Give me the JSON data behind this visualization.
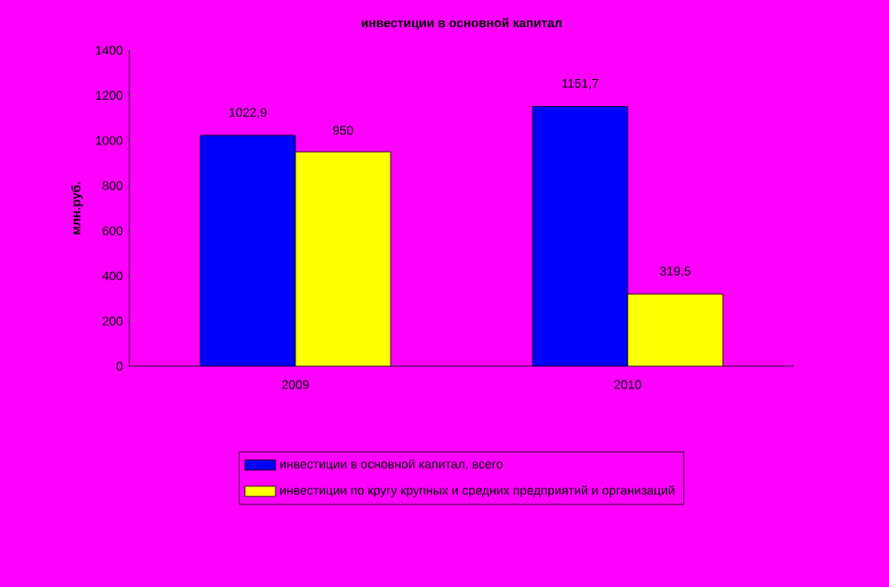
{
  "chart_data": {
    "type": "bar",
    "title": "инвестиции в основной капитал",
    "ylabel": "млн.руб.",
    "categories": [
      "2009",
      "2010"
    ],
    "series": [
      {
        "name": "инвестиции в основной капитал, всего",
        "color": "#0000ff",
        "values": [
          1022.9,
          1151.7
        ],
        "value_labels": [
          "1022,9",
          "1151,7"
        ]
      },
      {
        "name": "инвестиции по кругу крупных и средних предприятий и организаций",
        "color": "#ffff00",
        "values": [
          950,
          319.5
        ],
        "value_labels": [
          "950",
          "319,5"
        ]
      }
    ],
    "ylim": [
      0,
      1400
    ],
    "yticks": [
      0,
      200,
      400,
      600,
      800,
      1000,
      1200,
      1400
    ],
    "legend": "bottom",
    "grid": false
  }
}
